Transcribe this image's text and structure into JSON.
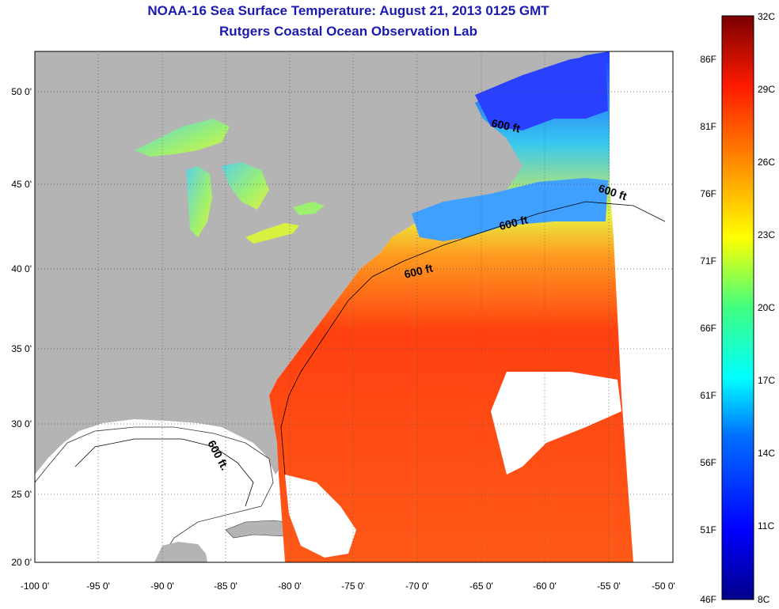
{
  "header": {
    "title": "NOAA-16 Sea Surface Temperature:  August 21, 2013 0125 GMT",
    "subtitle": "Rutgers Coastal Ocean Observation Lab"
  },
  "map": {
    "lon_ticks": [
      "-100 0'",
      "-95 0'",
      "-90 0'",
      "-85 0'",
      "-80 0'",
      "-75 0'",
      "-70 0'",
      "-65 0'",
      "-60 0'",
      "-55 0'",
      "-50 0'"
    ],
    "lat_ticks": [
      "20 0'",
      "25 0'",
      "30 0'",
      "35 0'",
      "40 0'",
      "45 0'",
      "50 0'"
    ],
    "contour_labels": [
      "600 ft",
      "600 ft",
      "600 ft",
      "600 ft",
      "600 ft."
    ],
    "colors": {
      "land": "#b4b4b4",
      "cloud": "#ffffff",
      "gulf": "#ffffff"
    }
  },
  "colorbar": {
    "fahrenheit_labels": [
      "86F",
      "81F",
      "76F",
      "71F",
      "66F",
      "61F",
      "56F",
      "51F",
      "46F"
    ],
    "celsius_labels": [
      "32C",
      "29C",
      "26C",
      "23C",
      "20C",
      "17C",
      "14C",
      "11C",
      "8C"
    ]
  }
}
